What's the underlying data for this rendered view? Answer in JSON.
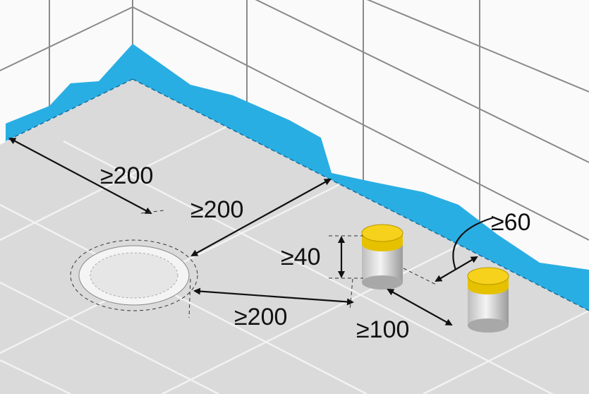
{
  "dimensions": [
    "≥200",
    "≥200",
    "≥200",
    "≥40",
    "≥100",
    "≥60"
  ]
}
